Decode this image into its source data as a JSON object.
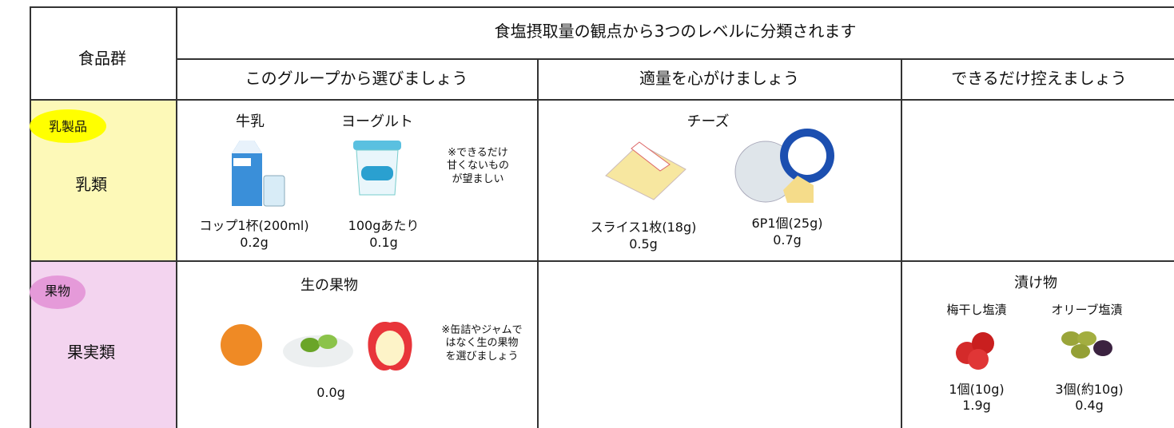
{
  "header": {
    "group_label": "食品群",
    "title": "食塩摂取量の観点から3つのレベルに分類されます",
    "columns": [
      "このグループから選びましょう",
      "適量を心がけましょう",
      "できるだけ控えましょう"
    ]
  },
  "rows": [
    {
      "badge": "乳製品",
      "label": "乳類",
      "choose": {
        "items": [
          {
            "name": "牛乳",
            "amount": "コップ1杯(200ml)",
            "salt": "0.2g"
          },
          {
            "name": "ヨーグルト",
            "amount": "100gあたり",
            "salt": "0.1g"
          }
        ],
        "note": [
          "※できるだけ",
          "甘くないもの",
          "が望ましい"
        ]
      },
      "moderate": {
        "name": "チーズ",
        "items": [
          {
            "amount": "スライス1枚(18g)",
            "salt": "0.5g"
          },
          {
            "amount": "6P1個(25g)",
            "salt": "0.7g"
          }
        ]
      }
    },
    {
      "badge": "果物",
      "label": "果実類",
      "choose": {
        "name": "生の果物",
        "note": [
          "※缶詰やジャムで",
          "はなく生の果物",
          "を選びましょう"
        ],
        "salt": "0.0g"
      },
      "limit": {
        "name": "漬け物",
        "items": [
          {
            "name": "梅干し塩漬",
            "amount": "1個(10g)",
            "salt": "1.9g"
          },
          {
            "name": "オリーブ塩漬",
            "amount": "3個(約10g)",
            "salt": "0.4g"
          }
        ]
      }
    }
  ]
}
